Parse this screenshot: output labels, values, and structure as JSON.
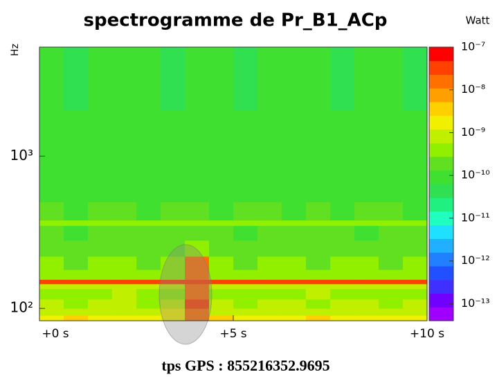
{
  "chart_data": {
    "type": "spectrogram",
    "title": "spectrogramme de Pr_B1_ACp",
    "ylabel": "Hz",
    "zlabel": "Watt",
    "footer": "tps GPS : 855216352.9695",
    "x_edges": [
      0,
      0.625,
      1.25,
      1.875,
      2.5,
      3.125,
      3.75,
      4.375,
      5,
      5.625,
      6.25,
      6.875,
      7.5,
      8.125,
      8.75,
      9.375,
      10
    ],
    "y_edges": [
      83,
      90,
      100,
      115,
      135,
      145,
      155,
      180,
      220,
      280,
      350,
      380,
      500,
      700,
      1000,
      2000,
      5200
    ],
    "values": [
      [
        2e-09,
        3e-09,
        1.5e-09,
        2e-09,
        2.5e-09,
        2e-09,
        2e-08,
        3e-09,
        2e-09,
        1.5e-09,
        2e-09,
        3e-09,
        2e-09,
        1.5e-09,
        2.5e-09,
        2e-09
      ],
      [
        1e-09,
        8e-10,
        1.2e-09,
        1e-09,
        9e-10,
        1.5e-09,
        2e-08,
        1e-09,
        8e-10,
        1e-09,
        1.2e-09,
        9e-10,
        1e-09,
        1.1e-09,
        8e-10,
        1e-09
      ],
      [
        6e-10,
        5e-10,
        7e-10,
        6e-10,
        5e-10,
        8e-10,
        2.5e-08,
        6e-10,
        5e-10,
        7e-10,
        6e-10,
        5e-10,
        6e-10,
        7e-10,
        5e-10,
        6e-10
      ],
      [
        4e-10,
        5e-10,
        4e-10,
        6e-10,
        5e-10,
        4e-10,
        2e-08,
        5e-10,
        4e-10,
        5e-10,
        4e-10,
        6e-10,
        5e-10,
        4e-10,
        5e-10,
        4e-10
      ],
      [
        8e-10,
        7e-10,
        9e-10,
        8e-10,
        7e-10,
        8e-10,
        2e-08,
        8e-10,
        9e-10,
        7e-10,
        8e-10,
        8e-10,
        7e-10,
        9e-10,
        8e-10,
        7e-10
      ],
      [
        3e-08,
        3e-08,
        3e-08,
        3e-08,
        3e-08,
        3e-08,
        3.5e-08,
        3e-08,
        3e-08,
        3e-08,
        3e-08,
        3e-08,
        3e-08,
        3e-08,
        3e-08,
        3e-08
      ],
      [
        4e-10,
        3e-10,
        5e-10,
        4e-10,
        3e-10,
        4e-10,
        2e-08,
        4e-10,
        3e-10,
        4e-10,
        5e-10,
        3e-10,
        4e-10,
        3e-10,
        4e-10,
        5e-10
      ],
      [
        3e-10,
        2.5e-10,
        3e-10,
        3.5e-10,
        2.5e-10,
        3e-10,
        1.5e-08,
        3e-10,
        2.5e-10,
        3e-10,
        3e-10,
        2.5e-10,
        3.5e-10,
        3e-10,
        2.5e-10,
        3e-10
      ],
      [
        2e-10,
        1.8e-10,
        2.2e-10,
        2e-10,
        1.8e-10,
        2e-10,
        3e-10,
        2e-10,
        1.8e-10,
        2.2e-10,
        2e-10,
        1.8e-10,
        2e-10,
        2.2e-10,
        1.8e-10,
        2e-10
      ],
      [
        1.5e-10,
        1.3e-10,
        1.6e-10,
        1.5e-10,
        1.4e-10,
        1.5e-10,
        1.6e-10,
        1.5e-10,
        1.3e-10,
        1.5e-10,
        1.6e-10,
        1.4e-10,
        1.5e-10,
        1.3e-10,
        1.5e-10,
        1.6e-10
      ],
      [
        4e-10,
        3.5e-10,
        4e-10,
        4.5e-10,
        4e-10,
        3.5e-10,
        4e-10,
        4e-10,
        3.5e-10,
        4e-10,
        4.5e-10,
        4e-10,
        3.5e-10,
        4e-10,
        4e-10,
        3.5e-10
      ],
      [
        1.5e-10,
        1.2e-10,
        1.4e-10,
        1.5e-10,
        1.3e-10,
        1.5e-10,
        1.4e-10,
        1.2e-10,
        1.5e-10,
        1.4e-10,
        1.3e-10,
        1.5e-10,
        1.2e-10,
        1.4e-10,
        1.5e-10,
        1.3e-10
      ],
      [
        1.2e-10,
        1e-10,
        1.1e-10,
        1.2e-10,
        1e-10,
        1.2e-10,
        1.1e-10,
        1e-10,
        1.2e-10,
        1.1e-10,
        1e-10,
        1.2e-10,
        1.1e-10,
        1e-10,
        1.2e-10,
        1.1e-10
      ],
      [
        1e-10,
        9e-11,
        1e-10,
        1.1e-10,
        9e-11,
        1e-10,
        1e-10,
        9e-11,
        1.1e-10,
        1e-10,
        9e-11,
        1e-10,
        1.1e-10,
        9e-11,
        1e-10,
        1e-10
      ],
      [
        8e-11,
        7e-11,
        8e-11,
        9e-11,
        8e-11,
        7e-11,
        8e-11,
        8e-11,
        9e-11,
        7e-11,
        8e-11,
        8e-11,
        7e-11,
        9e-11,
        8e-11,
        8e-11
      ],
      [
        7e-11,
        6e-11,
        7e-11,
        7e-11,
        8e-11,
        6e-11,
        7e-11,
        7e-11,
        6e-11,
        7e-11,
        8e-11,
        7e-11,
        6e-11,
        7e-11,
        7e-11,
        6e-11
      ]
    ],
    "xlim": [
      0,
      10
    ],
    "xticks": [
      {
        "value": 0,
        "label": "+0 s"
      },
      {
        "value": 5,
        "label": "+5 s"
      },
      {
        "value": 10,
        "label": "+10 s"
      }
    ],
    "ylim": [
      83,
      5200
    ],
    "ylog": true,
    "yticks": [
      {
        "value": 100,
        "label": "10²"
      },
      {
        "value": 1000,
        "label": "10³"
      }
    ],
    "zlim": [
      4e-14,
      1e-07
    ],
    "zlog": true,
    "zticks": [
      {
        "value": 1e-07,
        "label": "10⁻⁷"
      },
      {
        "value": 1e-08,
        "label": "10⁻⁸"
      },
      {
        "value": 1e-09,
        "label": "10⁻⁹"
      },
      {
        "value": 1e-10,
        "label": "10⁻¹⁰"
      },
      {
        "value": 1e-11,
        "label": "10⁻¹¹"
      },
      {
        "value": 1e-12,
        "label": "10⁻¹²"
      },
      {
        "value": 1e-13,
        "label": "10⁻¹³"
      }
    ],
    "colormap": [
      "#a000ff",
      "#7000ff",
      "#4030ff",
      "#2050ff",
      "#2080ff",
      "#20b0ff",
      "#20e0ff",
      "#20ffc0",
      "#20f080",
      "#30e050",
      "#40e030",
      "#60e020",
      "#90f000",
      "#c0f000",
      "#f0f000",
      "#ffd000",
      "#ffa000",
      "#ff7000",
      "#ff4000",
      "#ff0000"
    ]
  }
}
